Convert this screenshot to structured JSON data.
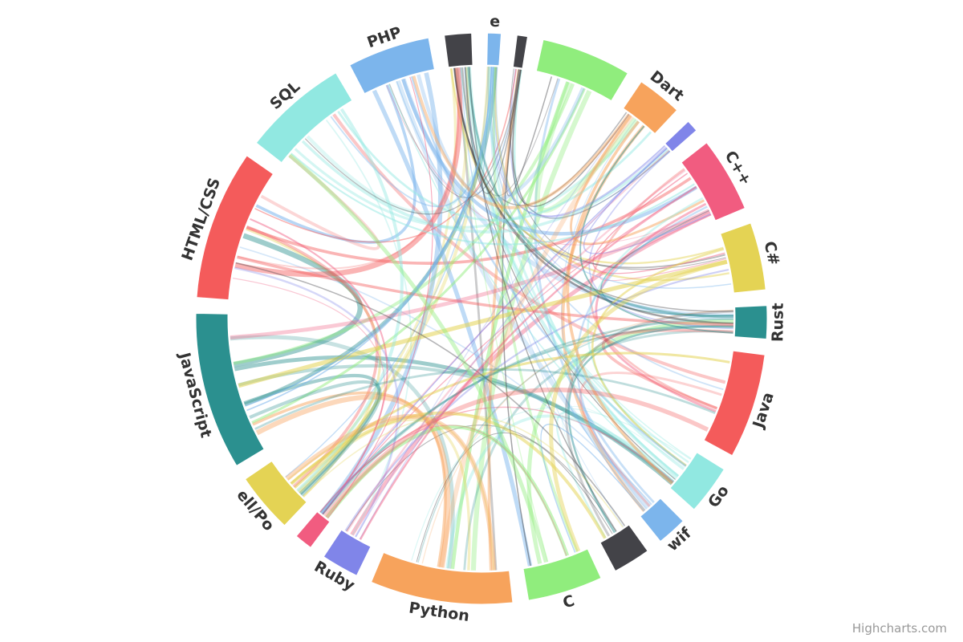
{
  "chart_data": {
    "type": "dependencywheel",
    "nodes": [
      {
        "label": "Dart",
        "size": 3,
        "color": "#f7a35c"
      },
      {
        "label": "",
        "size": 0.8,
        "color": "#8085e9"
      },
      {
        "label": "C++",
        "size": 5,
        "color": "#f15c80"
      },
      {
        "label": "C#",
        "size": 4.5,
        "color": "#e4d354"
      },
      {
        "label": "Rust",
        "size": 2.2,
        "color": "#2b908f"
      },
      {
        "label": "Java",
        "size": 7,
        "color": "#f45b5b"
      },
      {
        "label": "Go",
        "size": 3.3,
        "color": "#91e8e1"
      },
      {
        "label": "wif",
        "size": 2,
        "color": "#7cb5ec"
      },
      {
        "label": "",
        "size": 2.5,
        "color": "#434348"
      },
      {
        "label": "C",
        "size": 5,
        "color": "#90ed7d"
      },
      {
        "label": "Python",
        "size": 9.5,
        "color": "#f7a35c"
      },
      {
        "label": "Ruby",
        "size": 2.5,
        "color": "#8085e9"
      },
      {
        "label": "",
        "size": 1.2,
        "color": "#f15c80"
      },
      {
        "label": "ell/Po",
        "size": 4,
        "color": "#e4d354"
      },
      {
        "label": "JavaScript",
        "size": 10.5,
        "color": "#2b908f"
      },
      {
        "label": "HTML/CSS",
        "size": 10,
        "color": "#f45b5b"
      },
      {
        "label": "SQL",
        "size": 7,
        "color": "#91e8e1"
      },
      {
        "label": "PHP",
        "size": 5.5,
        "color": "#7cb5ec"
      },
      {
        "label": "",
        "size": 1.8,
        "color": "#434348"
      },
      {
        "label": "e",
        "size": 0.9,
        "color": "#7cb5ec"
      },
      {
        "label": "",
        "size": 0.7,
        "color": "#434348"
      },
      {
        "label": "",
        "size": 6,
        "color": "#90ed7d"
      }
    ]
  },
  "credits": "Highcharts.com"
}
